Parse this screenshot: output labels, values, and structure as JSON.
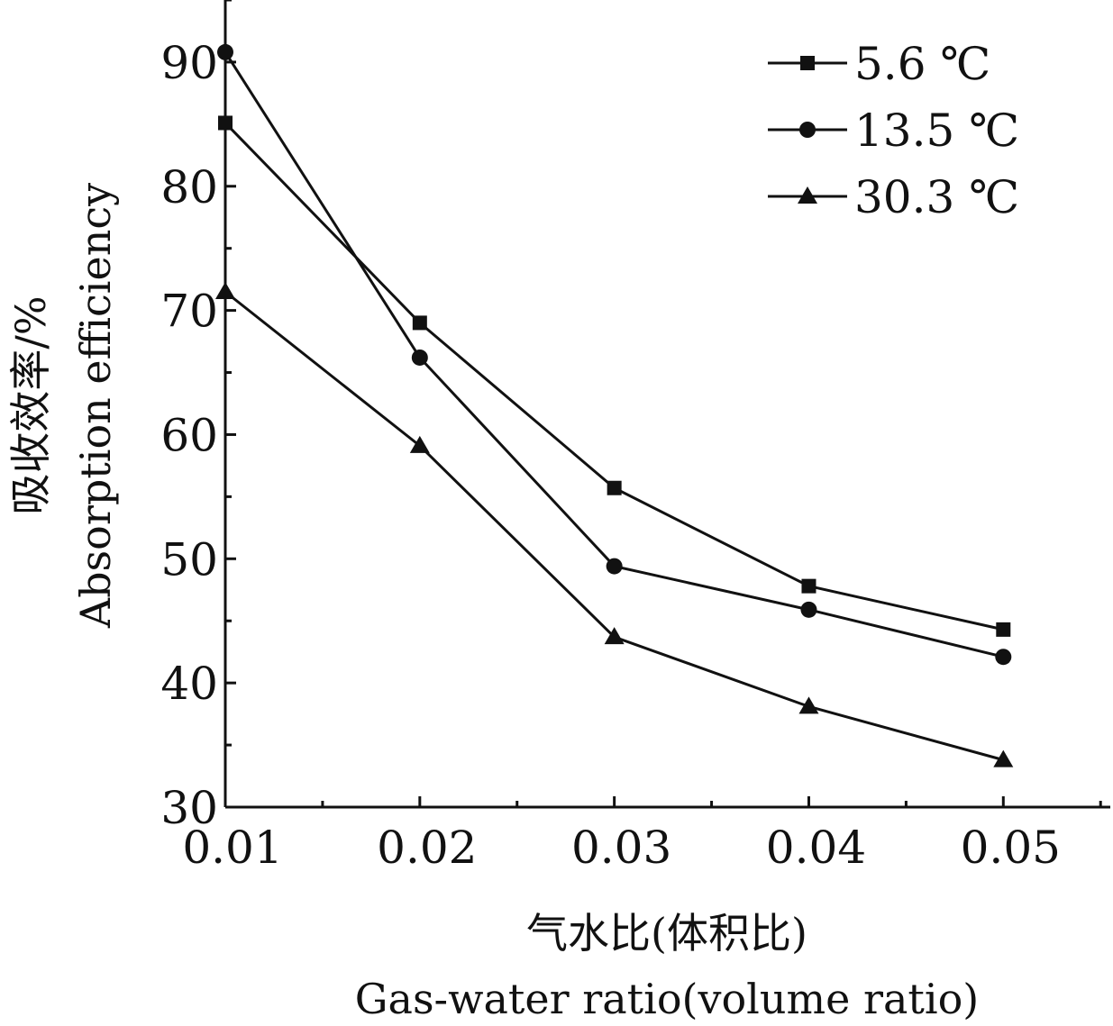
{
  "chart_data": {
    "type": "line",
    "xlabel_cn": "气水比(体积比)",
    "xlabel_en": "Gas-water ratio(volume ratio)",
    "ylabel_cn": "吸收效率/%",
    "ylabel_en": "Absorption efficiency",
    "x": [
      0.01,
      0.02,
      0.03,
      0.04,
      0.05
    ],
    "x_tick_labels": [
      "0.01",
      "0.02",
      "0.03",
      "0.04",
      "0.05"
    ],
    "xlim": [
      0.01,
      0.0555
    ],
    "ylim": [
      30,
      95
    ],
    "y_ticks": [
      30,
      40,
      50,
      60,
      70,
      80,
      90
    ],
    "y_tick_labels": [
      "30",
      "40",
      "50",
      "60",
      "70",
      "80",
      "90"
    ],
    "legend_position": "top-right",
    "grid": false,
    "series": [
      {
        "name": "5.6 ℃",
        "marker": "square",
        "values": [
          85.1,
          69.0,
          55.7,
          47.8,
          44.3
        ]
      },
      {
        "name": "13.5 ℃",
        "marker": "circle",
        "values": [
          90.8,
          66.2,
          49.4,
          45.9,
          42.1
        ]
      },
      {
        "name": "30.3 ℃",
        "marker": "triangle",
        "values": [
          71.5,
          59.1,
          43.7,
          38.1,
          33.8
        ]
      }
    ]
  }
}
